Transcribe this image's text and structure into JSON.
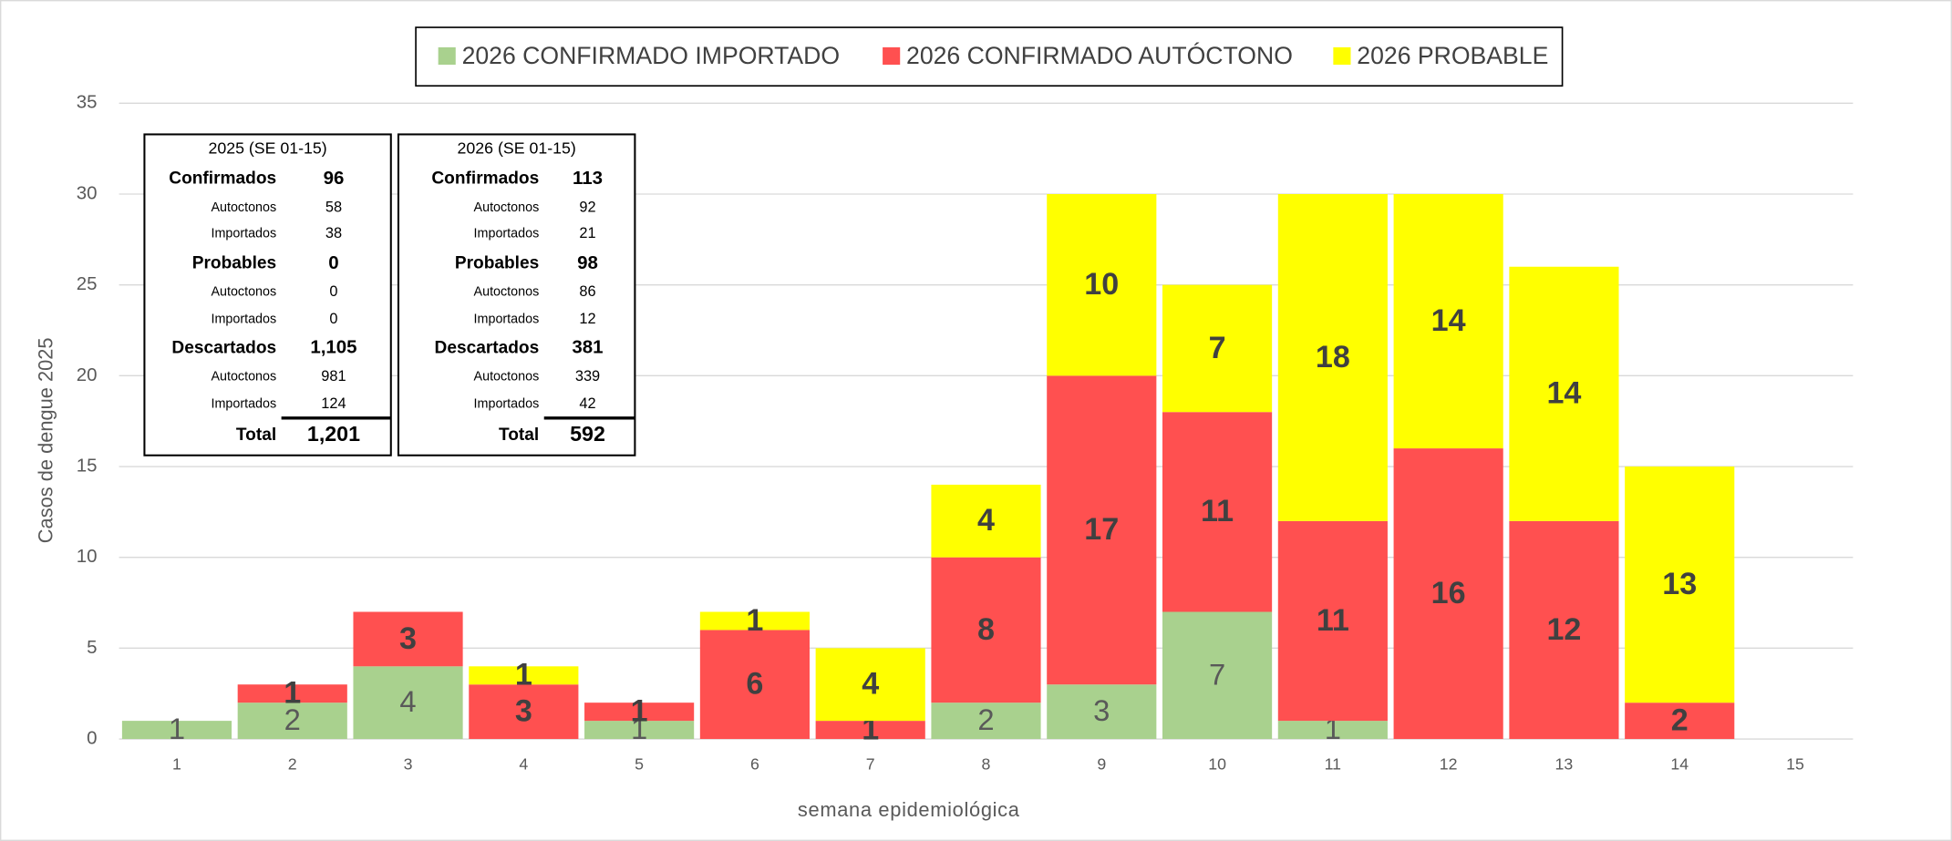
{
  "chart_data": {
    "type": "stacked-bar",
    "x_label": "semana epidemiológica",
    "y_label": "Casos de dengue 2025",
    "categories": [
      "1",
      "2",
      "3",
      "4",
      "5",
      "6",
      "7",
      "8",
      "9",
      "10",
      "11",
      "12",
      "13",
      "14",
      "15"
    ],
    "series": [
      {
        "name": "2026 CONFIRMADO IMPORTADO",
        "color": "#a9d18e",
        "values": [
          1,
          2,
          4,
          null,
          1,
          null,
          null,
          2,
          3,
          7,
          1,
          null,
          null,
          null,
          null
        ]
      },
      {
        "name": "2026 CONFIRMADO AUTÓCTONO",
        "color": "#ff5050",
        "values": [
          null,
          1,
          3,
          3,
          1,
          6,
          1,
          8,
          17,
          11,
          11,
          16,
          12,
          2,
          null
        ]
      },
      {
        "name": "2026 PROBABLE",
        "color": "#ffff00",
        "values": [
          null,
          null,
          null,
          1,
          null,
          1,
          4,
          4,
          10,
          7,
          18,
          14,
          14,
          13,
          null
        ]
      }
    ],
    "ylim": [
      0,
      35
    ],
    "yticks": [
      0,
      5,
      10,
      15,
      20,
      25,
      30,
      35
    ],
    "grid": true,
    "legend": "top"
  },
  "summary_tables": [
    {
      "title": "2025 (SE 01-15)",
      "rows": [
        [
          "Confirmados",
          "96"
        ],
        [
          "Autoctonos",
          "58"
        ],
        [
          "Importados",
          "38"
        ],
        [
          "Probables",
          "0"
        ],
        [
          "Autoctonos",
          "0"
        ],
        [
          "Importados",
          "0"
        ],
        [
          "Descartados",
          "1,105"
        ],
        [
          "Autoctonos",
          "981"
        ],
        [
          "Importados",
          "124"
        ],
        [
          "Total",
          "1,201"
        ]
      ]
    },
    {
      "title": "2026 (SE 01-15)",
      "rows": [
        [
          "Confirmados",
          "113"
        ],
        [
          "Autoctonos",
          "92"
        ],
        [
          "Importados",
          "21"
        ],
        [
          "Probables",
          "98"
        ],
        [
          "Autoctonos",
          "86"
        ],
        [
          "Importados",
          "12"
        ],
        [
          "Descartados",
          "381"
        ],
        [
          "Autoctonos",
          "339"
        ],
        [
          "Importados",
          "42"
        ],
        [
          "Total",
          "592"
        ]
      ]
    }
  ]
}
